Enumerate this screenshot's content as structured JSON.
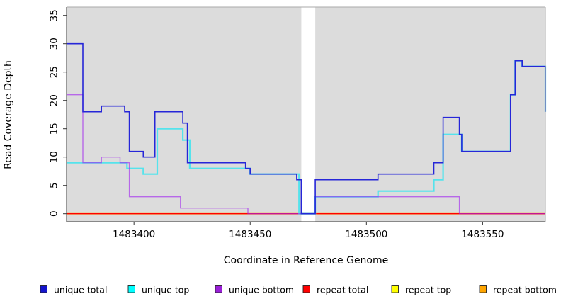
{
  "chart_data": {
    "type": "line",
    "step": true,
    "title": "",
    "xlabel": "Coordinate in Reference Genome",
    "ylabel": "Read Coverage Depth",
    "xlim": [
      1483371,
      1483577
    ],
    "ylim": [
      0,
      35
    ],
    "x_ticks": [
      1483400,
      1483450,
      1483500,
      1483550
    ],
    "y_ticks": [
      0,
      5,
      10,
      15,
      20,
      25,
      30,
      35
    ],
    "grid": false,
    "panel_bg": "#dcdcdc",
    "axis_color": "#333333",
    "box_light_color": "#aaaaaa",
    "gap_band": {
      "from": 1483472,
      "to": 1483478,
      "color": "#ffffff"
    },
    "draw_order": [
      5,
      4,
      3,
      1,
      2,
      0
    ],
    "series": [
      {
        "name": "unique total",
        "color": "#2626d8",
        "width": 1.6,
        "opacity": 1,
        "points": [
          [
            1483371,
            30
          ],
          [
            1483378,
            18
          ],
          [
            1483386,
            19
          ],
          [
            1483396,
            18
          ],
          [
            1483398,
            11
          ],
          [
            1483404,
            10
          ],
          [
            1483409,
            18
          ],
          [
            1483421,
            16
          ],
          [
            1483423,
            9
          ],
          [
            1483448,
            8
          ],
          [
            1483450,
            7
          ],
          [
            1483470,
            6
          ],
          [
            1483472,
            0
          ],
          [
            1483478,
            6
          ],
          [
            1483505,
            7
          ],
          [
            1483529,
            9
          ],
          [
            1483533,
            17
          ],
          [
            1483540,
            14
          ],
          [
            1483541,
            11
          ],
          [
            1483562,
            21
          ],
          [
            1483564,
            27
          ],
          [
            1483567,
            26
          ],
          [
            1483577,
            18
          ]
        ]
      },
      {
        "name": "unique top",
        "color": "#55e3ec",
        "width": 2.2,
        "opacity": 1,
        "points": [
          [
            1483371,
            9
          ],
          [
            1483397,
            8
          ],
          [
            1483404,
            7
          ],
          [
            1483410,
            15
          ],
          [
            1483421,
            13
          ],
          [
            1483424,
            8
          ],
          [
            1483450,
            7
          ],
          [
            1483471,
            0
          ],
          [
            1483478,
            3
          ],
          [
            1483505,
            4
          ],
          [
            1483529,
            6
          ],
          [
            1483533,
            14
          ],
          [
            1483541,
            11
          ],
          [
            1483562,
            21
          ],
          [
            1483564,
            27
          ],
          [
            1483567,
            26
          ],
          [
            1483577,
            18
          ]
        ]
      },
      {
        "name": "unique bottom",
        "color": "#a020f0",
        "width": 1.4,
        "opacity": 0.62,
        "points": [
          [
            1483371,
            21
          ],
          [
            1483378,
            9
          ],
          [
            1483386,
            10
          ],
          [
            1483394,
            9
          ],
          [
            1483398,
            3
          ],
          [
            1483420,
            1
          ],
          [
            1483449,
            0
          ],
          [
            1483478,
            3
          ],
          [
            1483540,
            0
          ]
        ]
      },
      {
        "name": "repeat total",
        "color": "#ff0000",
        "width": 1.4,
        "opacity": 1,
        "points": [
          [
            1483371,
            0
          ]
        ]
      },
      {
        "name": "repeat top",
        "color": "#ffff00",
        "width": 1.4,
        "opacity": 1,
        "points": [
          [
            1483371,
            0
          ]
        ]
      },
      {
        "name": "repeat bottom",
        "color": "#ffa218",
        "width": 1.8,
        "opacity": 1,
        "points": [
          [
            1483371,
            0
          ]
        ]
      }
    ],
    "legend": {
      "position": "bottom",
      "entries": [
        {
          "label": "unique total",
          "swatch": "#1414cc"
        },
        {
          "label": "unique top",
          "swatch": "#00ffff"
        },
        {
          "label": "unique bottom",
          "swatch": "#9a1fd8"
        },
        {
          "label": "repeat total",
          "swatch": "#ff0000"
        },
        {
          "label": "repeat top",
          "swatch": "#ffff00"
        },
        {
          "label": "repeat bottom",
          "swatch": "#ffa500"
        }
      ]
    }
  }
}
